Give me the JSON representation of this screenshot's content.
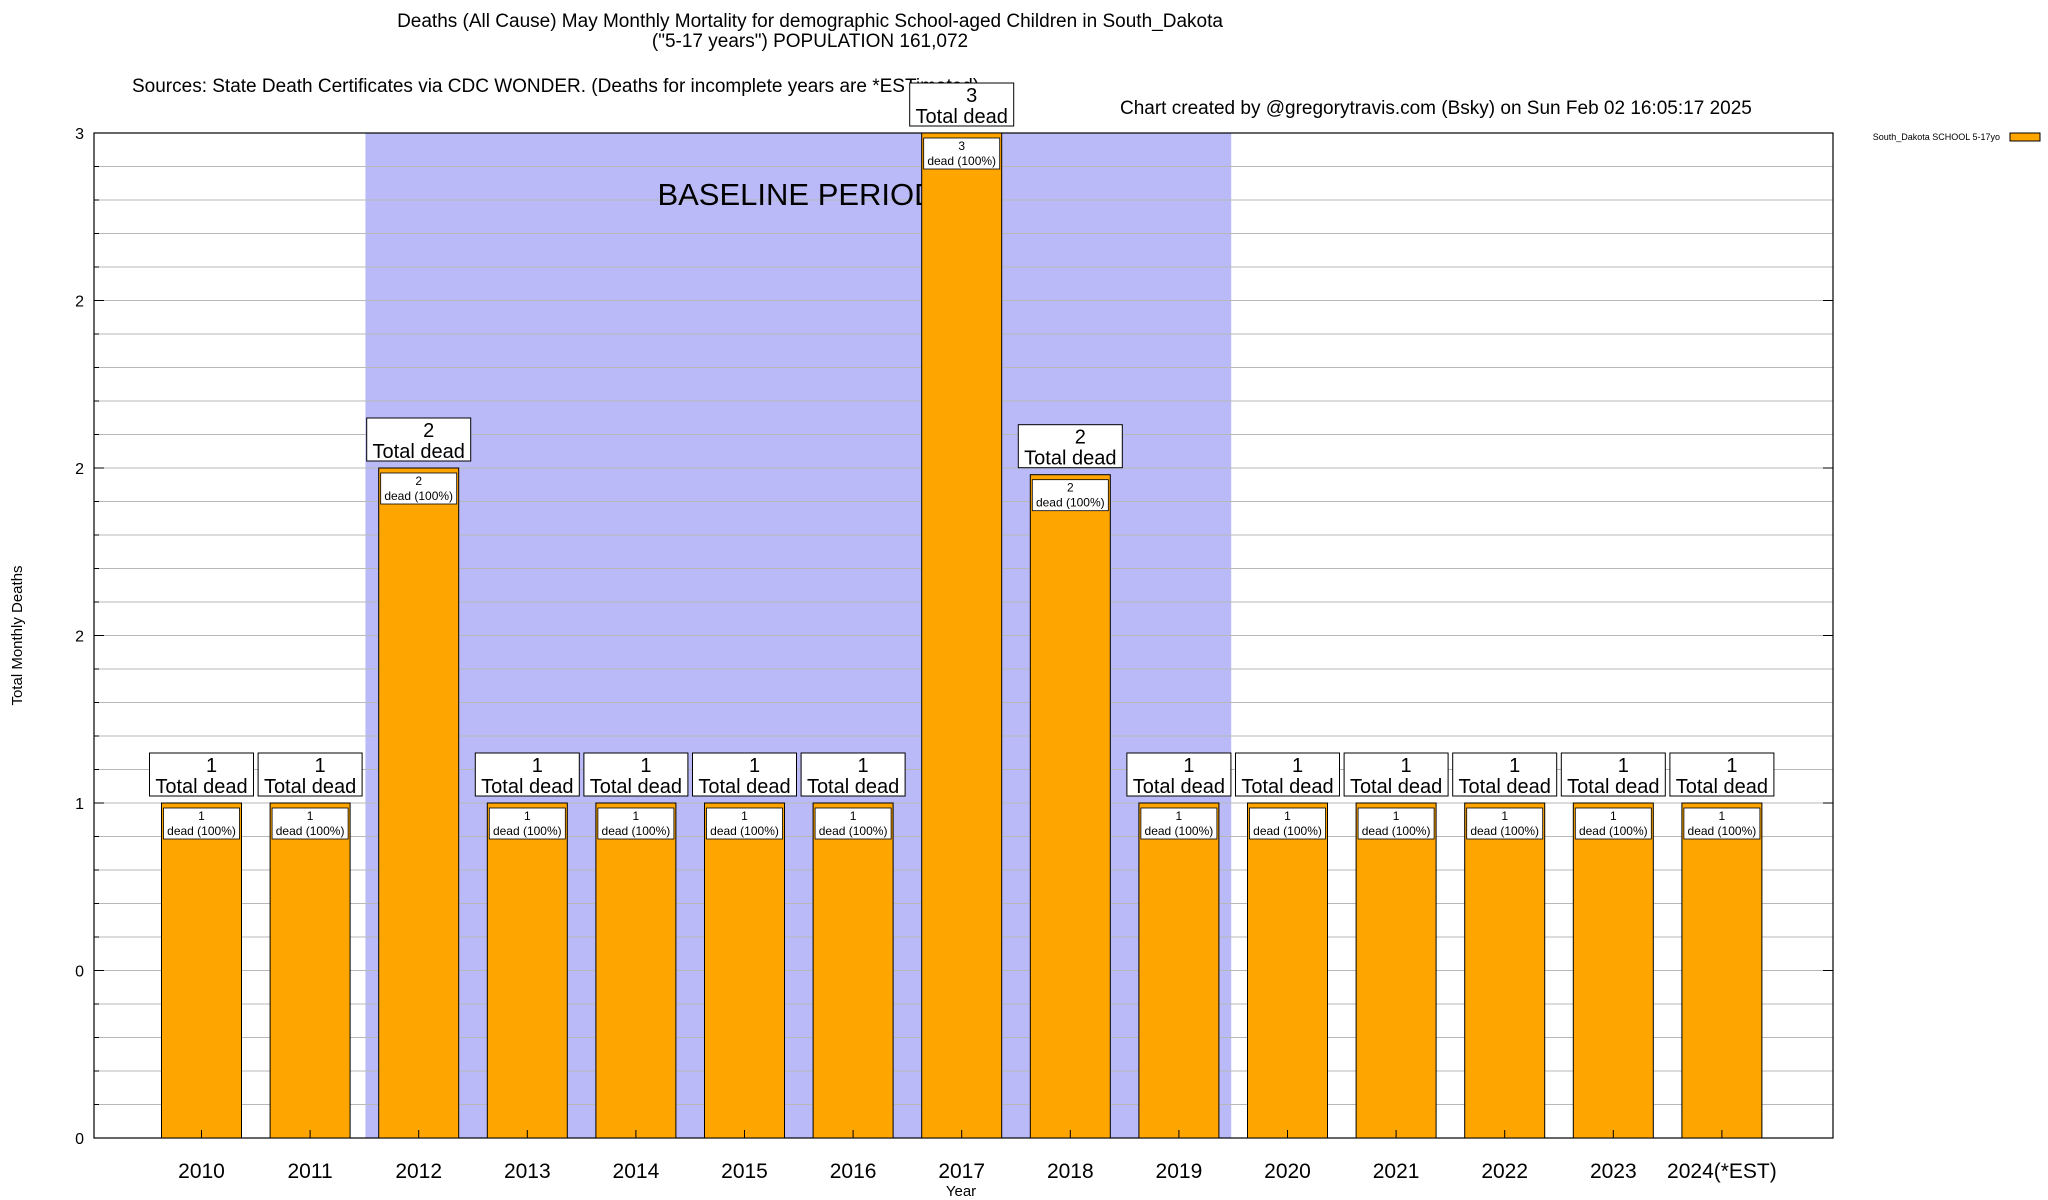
{
  "chart_data": {
    "type": "bar",
    "title": "Deaths (All Cause) May Monthly Mortality for demographic School-aged Children in South_Dakota",
    "subtitle": "(\"5-17 years\") POPULATION 161,072",
    "sources": "Sources: State Death Certificates via CDC WONDER. (Deaths for incomplete years are *ESTimated)",
    "credit": "Chart created by @gregorytravis.com (Bsky) on Sun Feb 02 16:05:17 2025",
    "xlabel": "Year",
    "ylabel": "Total Monthly Deaths",
    "ylim": [
      0,
      3
    ],
    "y_ticks": [
      0,
      0.5,
      1,
      1.5,
      2,
      2.5,
      3
    ],
    "y_tick_labels": [
      "0",
      "0",
      "1",
      "2",
      "2",
      "2",
      "3"
    ],
    "categories": [
      "2010",
      "2011",
      "2012",
      "2013",
      "2014",
      "2015",
      "2016",
      "2017",
      "2018",
      "2019",
      "2020",
      "2021",
      "2022",
      "2023",
      "2024(*EST)"
    ],
    "series": [
      {
        "name": "South_Dakota SCHOOL 5-17yo",
        "color": "#ffa500",
        "values": [
          1,
          1,
          2,
          1,
          1,
          1,
          1,
          3,
          1.98,
          1,
          1,
          1,
          1,
          1,
          1
        ]
      }
    ],
    "top_labels": [
      [
        "1",
        "Total dead"
      ],
      [
        "1",
        "Total dead"
      ],
      [
        "2",
        "Total dead"
      ],
      [
        "1",
        "Total dead"
      ],
      [
        "1",
        "Total dead"
      ],
      [
        "1",
        "Total dead"
      ],
      [
        "1",
        "Total dead"
      ],
      [
        "3",
        "Total dead"
      ],
      [
        "2",
        "Total dead"
      ],
      [
        "1",
        "Total dead"
      ],
      [
        "1",
        "Total dead"
      ],
      [
        "1",
        "Total dead"
      ],
      [
        "1",
        "Total dead"
      ],
      [
        "1",
        "Total dead"
      ],
      [
        "1",
        "Total dead"
      ]
    ],
    "inner_labels": [
      [
        "1",
        "dead (100%)"
      ],
      [
        "1",
        "dead (100%)"
      ],
      [
        "2",
        "dead (100%)"
      ],
      [
        "1",
        "dead (100%)"
      ],
      [
        "1",
        "dead (100%)"
      ],
      [
        "1",
        "dead (100%)"
      ],
      [
        "1",
        "dead (100%)"
      ],
      [
        "3",
        "dead (100%)"
      ],
      [
        "2",
        "dead (100%)"
      ],
      [
        "1",
        "dead (100%)"
      ],
      [
        "1",
        "dead (100%)"
      ],
      [
        "1",
        "dead (100%)"
      ],
      [
        "1",
        "dead (100%)"
      ],
      [
        "1",
        "dead (100%)"
      ],
      [
        "1",
        "dead (100%)"
      ]
    ],
    "baseline": {
      "label": "BASELINE PERIOD",
      "from": "2012",
      "to": "2019",
      "color": "#babaf8"
    },
    "legend_position": "top-right",
    "grid": true
  }
}
